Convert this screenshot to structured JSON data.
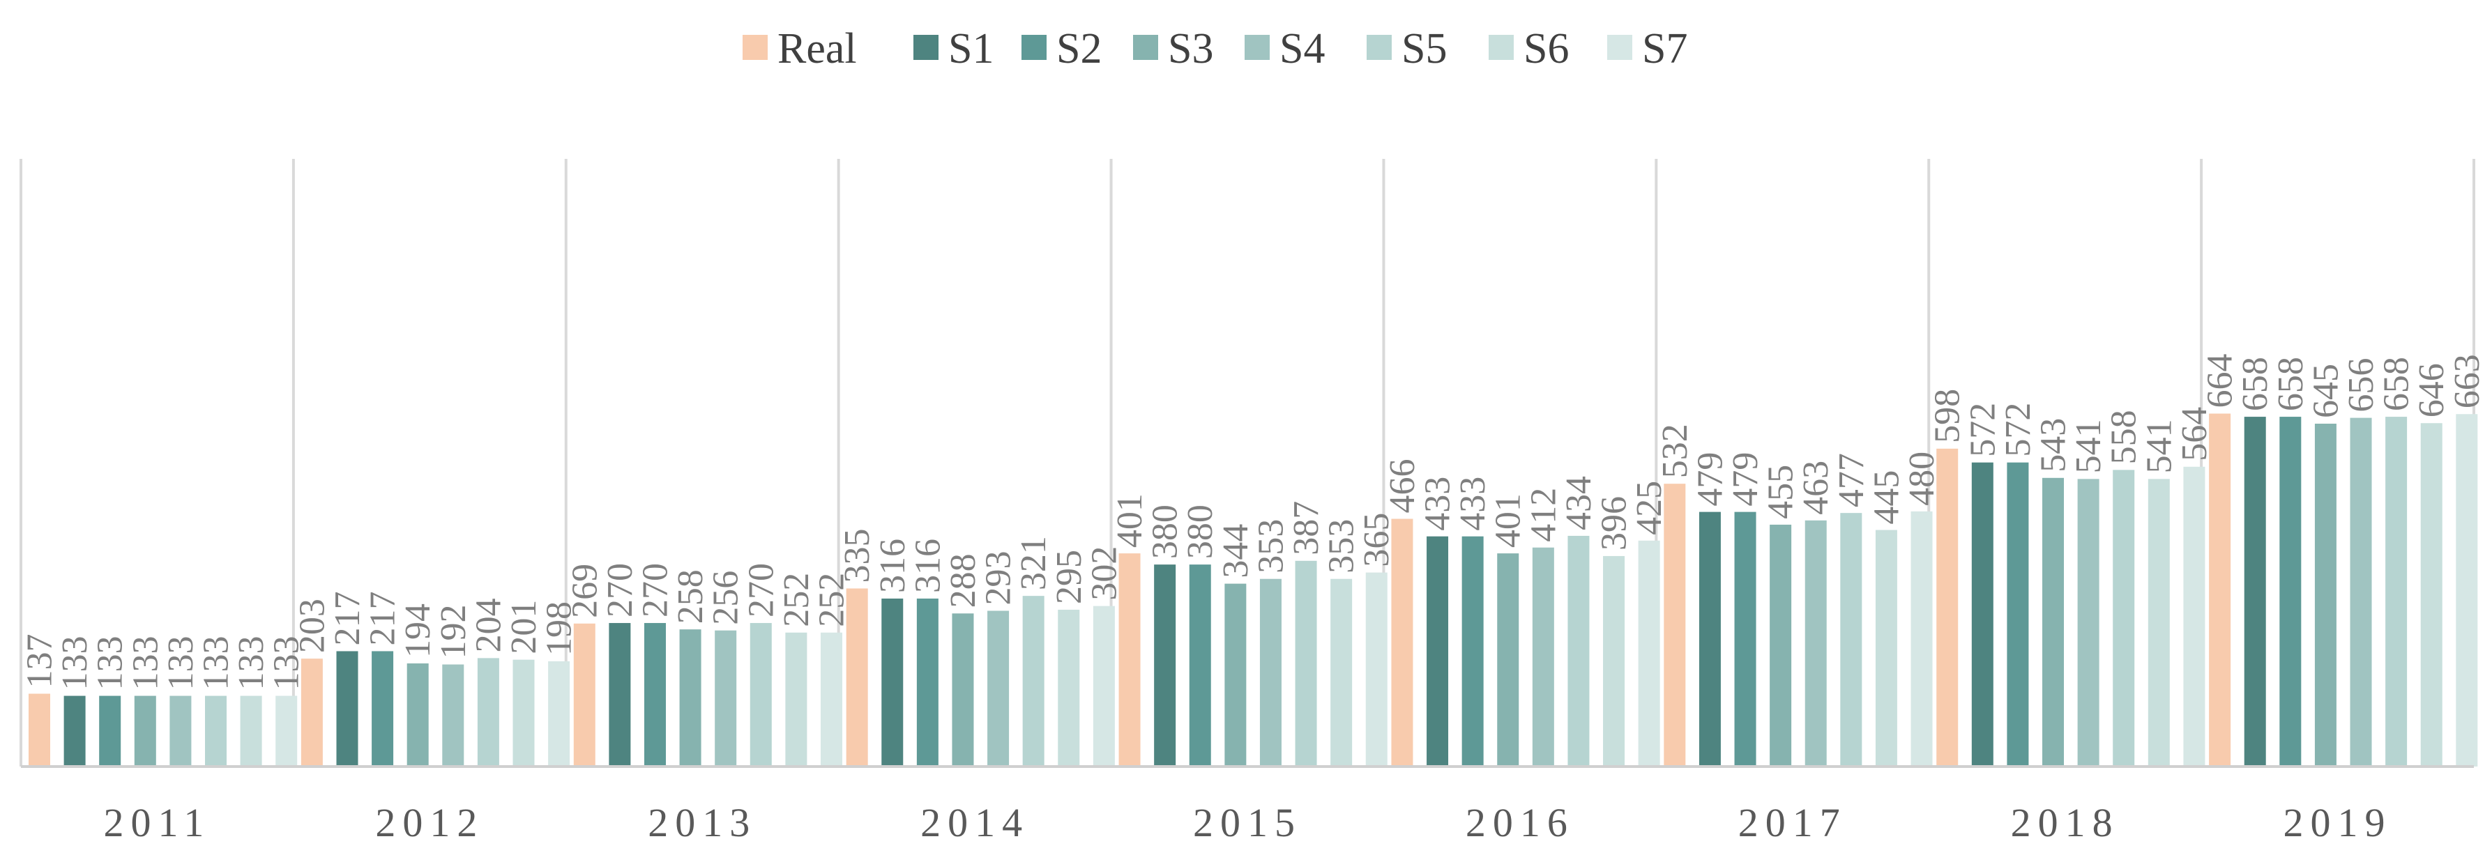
{
  "chart_data": {
    "type": "bar",
    "title": "",
    "xlabel": "",
    "ylabel": "",
    "ylim": [
      0,
      800
    ],
    "grid": false,
    "legend_position": "top",
    "categories": [
      "2011",
      "2012",
      "2013",
      "2014",
      "2015",
      "2016",
      "2017",
      "2018",
      "2019"
    ],
    "series": [
      {
        "name": "Real",
        "color": "#F8CBAD",
        "values": [
          137,
          203,
          269,
          335,
          401,
          466,
          532,
          598,
          664
        ]
      },
      {
        "name": "S1",
        "color": "#4E8480",
        "values": [
          133,
          217,
          270,
          316,
          380,
          433,
          479,
          572,
          658
        ]
      },
      {
        "name": "S2",
        "color": "#5E9996",
        "values": [
          133,
          217,
          270,
          316,
          380,
          433,
          479,
          572,
          658
        ]
      },
      {
        "name": "S3",
        "color": "#86B3AF",
        "values": [
          133,
          194,
          258,
          288,
          344,
          401,
          455,
          543,
          645
        ]
      },
      {
        "name": "S4",
        "color": "#A0C4C1",
        "values": [
          133,
          192,
          256,
          293,
          353,
          412,
          463,
          541,
          656
        ]
      },
      {
        "name": "S5",
        "color": "#B6D4D1",
        "values": [
          133,
          204,
          270,
          321,
          387,
          434,
          477,
          558,
          658
        ]
      },
      {
        "name": "S6",
        "color": "#C8DFDC",
        "values": [
          133,
          201,
          252,
          295,
          353,
          396,
          445,
          541,
          646
        ]
      },
      {
        "name": "S7",
        "color": "#D6E7E5",
        "values": [
          133,
          198,
          252,
          302,
          365,
          425,
          480,
          564,
          663
        ]
      }
    ]
  }
}
